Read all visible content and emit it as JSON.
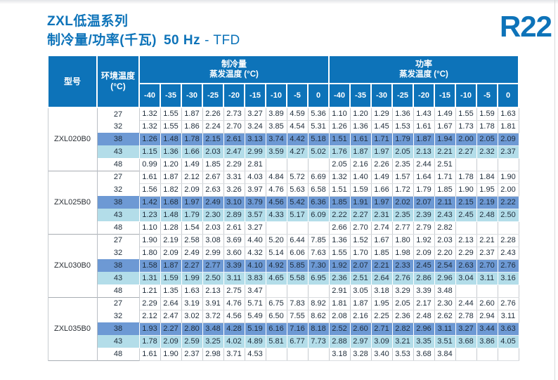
{
  "page": {
    "title_line1": "ZXL低温系列",
    "title_line2": "制冷量/功率(千瓦)",
    "title_freq": "50 Hz",
    "title_suffix": "- TFD",
    "refrigerant": "R22"
  },
  "colors": {
    "header_blue": "#0d73b9",
    "highlight_dark_row": "#6d99d4",
    "highlight_light_row": "#b3dde9",
    "title_blue": "#0d73b9"
  },
  "table": {
    "header": {
      "model": "型号",
      "ambient_line1": "环境温度",
      "ambient_line2": "(°C)",
      "cooling_group": "制冷量",
      "power_group": "功率",
      "evap_label": "蒸发温度 (°C)",
      "evap_temps": [
        "-40",
        "-35",
        "-30",
        "-25",
        "-20",
        "-15",
        "-10",
        "-5",
        "0"
      ]
    },
    "blocks": [
      {
        "model": "ZXL020B0",
        "rows": [
          {
            "ambient": "27",
            "highlight": "none",
            "cooling": [
              "1.32",
              "1.55",
              "1.87",
              "2.26",
              "2.73",
              "3.27",
              "3.89",
              "4.59",
              "5.36"
            ],
            "power": [
              "1.10",
              "1.20",
              "1.29",
              "1.36",
              "1.43",
              "1.49",
              "1.55",
              "1.59",
              "1.63"
            ]
          },
          {
            "ambient": "32",
            "highlight": "none",
            "cooling": [
              "1.32",
              "1.55",
              "1.86",
              "2.24",
              "2.70",
              "3.24",
              "3.85",
              "4.54",
              "5.31"
            ],
            "power": [
              "1.26",
              "1.36",
              "1.45",
              "1.53",
              "1.61",
              "1.67",
              "1.73",
              "1.78",
              "1.81"
            ]
          },
          {
            "ambient": "38",
            "highlight": "dark",
            "cooling": [
              "1.26",
              "1.48",
              "1.78",
              "2.15",
              "2.61",
              "3.13",
              "3.74",
              "4.42",
              "5.18"
            ],
            "power": [
              "1.51",
              "1.61",
              "1.71",
              "1.79",
              "1.87",
              "1.94",
              "2.00",
              "2.05",
              "2.09"
            ]
          },
          {
            "ambient": "43",
            "highlight": "light",
            "cooling": [
              "1.15",
              "1.36",
              "1.66",
              "2.03",
              "2.47",
              "2.99",
              "3.59",
              "4.27",
              "5.02"
            ],
            "power": [
              "1.76",
              "1.87",
              "1.97",
              "2.05",
              "2.13",
              "2.21",
              "2.27",
              "2.32",
              "2.37"
            ]
          },
          {
            "ambient": "48",
            "highlight": "none",
            "cooling": [
              "0.99",
              "1.20",
              "1.49",
              "1.85",
              "2.29",
              "2.81",
              "",
              "",
              ""
            ],
            "power": [
              "2.05",
              "2.16",
              "2.26",
              "2.35",
              "2.44",
              "2.51",
              "",
              "",
              ""
            ]
          }
        ]
      },
      {
        "model": "ZXL025B0",
        "rows": [
          {
            "ambient": "27",
            "highlight": "none",
            "cooling": [
              "1.61",
              "1.87",
              "2.12",
              "2.67",
              "3.31",
              "4.03",
              "4.84",
              "5.72",
              "6.69"
            ],
            "power": [
              "1.32",
              "1.40",
              "1.49",
              "1.57",
              "1.64",
              "1.71",
              "1.78",
              "1.84",
              "1.90"
            ]
          },
          {
            "ambient": "32",
            "highlight": "none",
            "cooling": [
              "1.56",
              "1.82",
              "2.09",
              "2.63",
              "3.26",
              "3.97",
              "4.76",
              "5.63",
              "6.58"
            ],
            "power": [
              "1.51",
              "1.59",
              "1.66",
              "1.72",
              "1.79",
              "1.85",
              "1.90",
              "1.95",
              "2.00"
            ]
          },
          {
            "ambient": "38",
            "highlight": "dark",
            "cooling": [
              "1.42",
              "1.68",
              "1.97",
              "2.49",
              "3.10",
              "3.79",
              "4.56",
              "5.42",
              "6.36"
            ],
            "power": [
              "1.85",
              "1.91",
              "1.97",
              "2.02",
              "2.07",
              "2.11",
              "2.15",
              "2.19",
              "2.22"
            ]
          },
          {
            "ambient": "43",
            "highlight": "light",
            "cooling": [
              "1.23",
              "1.48",
              "1.79",
              "2.30",
              "2.89",
              "3.57",
              "4.33",
              "5.17",
              "6.09"
            ],
            "power": [
              "2.22",
              "2.27",
              "2.31",
              "2.35",
              "2.39",
              "2.43",
              "2.45",
              "2.48",
              "2.50"
            ]
          },
          {
            "ambient": "48",
            "highlight": "none",
            "cooling": [
              "1.10",
              "1.28",
              "1.54",
              "2.03",
              "2.61",
              "3.27",
              "",
              "",
              ""
            ],
            "power": [
              "2.66",
              "2.70",
              "2.74",
              "2.77",
              "2.79",
              "2.82",
              "",
              "",
              ""
            ]
          }
        ]
      },
      {
        "model": "ZXL030B0",
        "rows": [
          {
            "ambient": "27",
            "highlight": "none",
            "cooling": [
              "1.90",
              "2.19",
              "2.58",
              "3.08",
              "3.69",
              "4.40",
              "5.20",
              "6.44",
              "7.85"
            ],
            "power": [
              "1.36",
              "1.52",
              "1.67",
              "1.80",
              "1.92",
              "2.03",
              "2.13",
              "2.21",
              "2.28"
            ]
          },
          {
            "ambient": "32",
            "highlight": "none",
            "cooling": [
              "1.80",
              "2.09",
              "2.49",
              "2.99",
              "3.60",
              "4.32",
              "5.14",
              "6.06",
              "7.63"
            ],
            "power": [
              "1.55",
              "1.70",
              "1.85",
              "1.98",
              "2.09",
              "2.20",
              "2.29",
              "2.37",
              "2.43"
            ]
          },
          {
            "ambient": "38",
            "highlight": "dark",
            "cooling": [
              "1.58",
              "1.87",
              "2.27",
              "2.77",
              "3.39",
              "4.10",
              "4.92",
              "5.85",
              "7.30"
            ],
            "power": [
              "1.92",
              "2.07",
              "2.21",
              "2.33",
              "2.45",
              "2.54",
              "2.63",
              "2.70",
              "2.76"
            ]
          },
          {
            "ambient": "43",
            "highlight": "light",
            "cooling": [
              "1.31",
              "1.59",
              "1.99",
              "2.50",
              "3.11",
              "3.83",
              "4.65",
              "5.58",
              "6.95"
            ],
            "power": [
              "2.36",
              "2.51",
              "2.64",
              "2.76",
              "2.86",
              "2.96",
              "3.04",
              "3.11",
              "3.16"
            ]
          },
          {
            "ambient": "48",
            "highlight": "none",
            "cooling": [
              "1.21",
              "1.35",
              "1.63",
              "2.13",
              "2.75",
              "3.47",
              "",
              "",
              ""
            ],
            "power": [
              "2.91",
              "3.05",
              "3.18",
              "3.29",
              "3.39",
              "3.48",
              "",
              "",
              ""
            ]
          }
        ]
      },
      {
        "model": "ZXL035B0",
        "rows": [
          {
            "ambient": "27",
            "highlight": "none",
            "cooling": [
              "2.29",
              "2.64",
              "3.19",
              "3.91",
              "4.76",
              "5.71",
              "6.75",
              "7.83",
              "8.92"
            ],
            "power": [
              "1.81",
              "1.87",
              "1.95",
              "2.05",
              "2.17",
              "2.30",
              "2.44",
              "2.60",
              "2.76"
            ]
          },
          {
            "ambient": "32",
            "highlight": "none",
            "cooling": [
              "2.12",
              "2.47",
              "3.02",
              "3.72",
              "4.56",
              "5.49",
              "6.50",
              "7.55",
              "8.62"
            ],
            "power": [
              "2.08",
              "2.16",
              "2.25",
              "2.36",
              "2.48",
              "2.62",
              "2.78",
              "2.94",
              "3.11"
            ]
          },
          {
            "ambient": "38",
            "highlight": "dark",
            "cooling": [
              "1.93",
              "2.27",
              "2.80",
              "3.48",
              "4.28",
              "5.19",
              "6.16",
              "7.16",
              "8.18"
            ],
            "power": [
              "2.52",
              "2.60",
              "2.71",
              "2.82",
              "2.96",
              "3.11",
              "3.27",
              "3.44",
              "3.63"
            ]
          },
          {
            "ambient": "43",
            "highlight": "light",
            "cooling": [
              "1.78",
              "2.09",
              "2.59",
              "3.25",
              "4.02",
              "4.89",
              "5.81",
              "6.77",
              "7.73"
            ],
            "power": [
              "2.88",
              "2.97",
              "3.09",
              "3.21",
              "3.35",
              "3.51",
              "3.68",
              "3.86",
              "4.05"
            ]
          },
          {
            "ambient": "48",
            "highlight": "none",
            "cooling": [
              "1.61",
              "1.90",
              "2.37",
              "2.98",
              "3.71",
              "4.53",
              "",
              "",
              ""
            ],
            "power": [
              "3.18",
              "3.28",
              "3.40",
              "3.53",
              "3.68",
              "3.84",
              "",
              "",
              ""
            ]
          }
        ]
      }
    ]
  }
}
